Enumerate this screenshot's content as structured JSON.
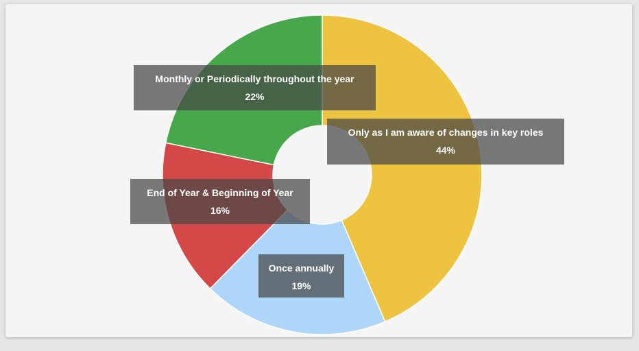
{
  "chart_data": {
    "type": "pie",
    "donut": true,
    "slices": [
      {
        "label": "Only as I am aware of changes in key roles",
        "value": 44,
        "value_label": "44%",
        "color": "#EEC340"
      },
      {
        "label": "Once annually",
        "value": 19,
        "value_label": "19%",
        "color": "#AED6F8"
      },
      {
        "label": "End of Year & Beginning of Year",
        "value": 16,
        "value_label": "16%",
        "color": "#D44848"
      },
      {
        "label": "Monthly or Periodically throughout the year",
        "value": 22,
        "value_label": "22%",
        "color": "#46A84A"
      }
    ],
    "start_angle_deg": 0,
    "direction": "clockwise",
    "legend": "none"
  }
}
